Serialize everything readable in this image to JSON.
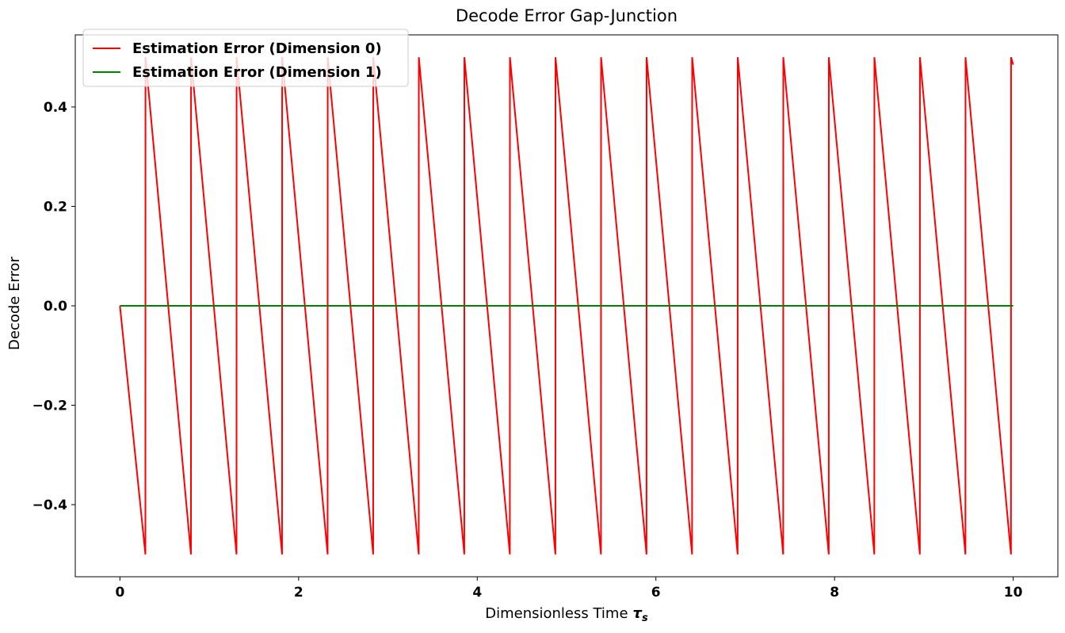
{
  "chart_data": {
    "type": "line",
    "title": "Decode Error Gap-Junction",
    "xlabel": "Dimensionless Time",
    "xlabel_symbol": "τ",
    "xlabel_subscript": "s",
    "ylabel": "Decode Error",
    "xlim": [
      -0.5,
      10.5
    ],
    "ylim": [
      -0.545,
      0.545
    ],
    "xticks": [
      0,
      2,
      4,
      6,
      8,
      10
    ],
    "xtick_labels": [
      "0",
      "2",
      "4",
      "6",
      "8",
      "10"
    ],
    "yticks": [
      -0.4,
      -0.2,
      0.0,
      0.2,
      0.4
    ],
    "ytick_labels": [
      "−0.4",
      "−0.2",
      "0.0",
      "0.2",
      "0.4"
    ],
    "grid": false,
    "legend_position": "top-left",
    "series": [
      {
        "name": "Estimation Error (Dimension 0)",
        "color": "#ff0000",
        "x": [
          0,
          0.285,
          0.286,
          0.795,
          0.796,
          1.305,
          1.306,
          1.815,
          1.816,
          2.325,
          2.326,
          2.835,
          2.836,
          3.345,
          3.346,
          3.855,
          3.856,
          4.365,
          4.366,
          4.875,
          4.876,
          5.385,
          5.386,
          5.895,
          5.896,
          6.405,
          6.406,
          6.915,
          6.916,
          7.425,
          7.426,
          7.935,
          7.936,
          8.445,
          8.446,
          8.955,
          8.956,
          9.465,
          9.466,
          9.975,
          9.976,
          10.0
        ],
        "y": [
          0,
          -0.5,
          0.5,
          -0.5,
          0.5,
          -0.5,
          0.5,
          -0.5,
          0.5,
          -0.5,
          0.5,
          -0.5,
          0.5,
          -0.5,
          0.5,
          -0.5,
          0.5,
          -0.5,
          0.5,
          -0.5,
          0.5,
          -0.5,
          0.5,
          -0.5,
          0.5,
          -0.5,
          0.5,
          -0.5,
          0.5,
          -0.5,
          0.5,
          -0.5,
          0.5,
          -0.5,
          0.5,
          -0.5,
          0.5,
          -0.5,
          0.5,
          -0.5,
          0.5,
          0.485
        ]
      },
      {
        "name": "Estimation Error (Dimension 1)",
        "color": "#008000",
        "x": [
          0,
          10
        ],
        "y": [
          0,
          0
        ]
      }
    ]
  }
}
